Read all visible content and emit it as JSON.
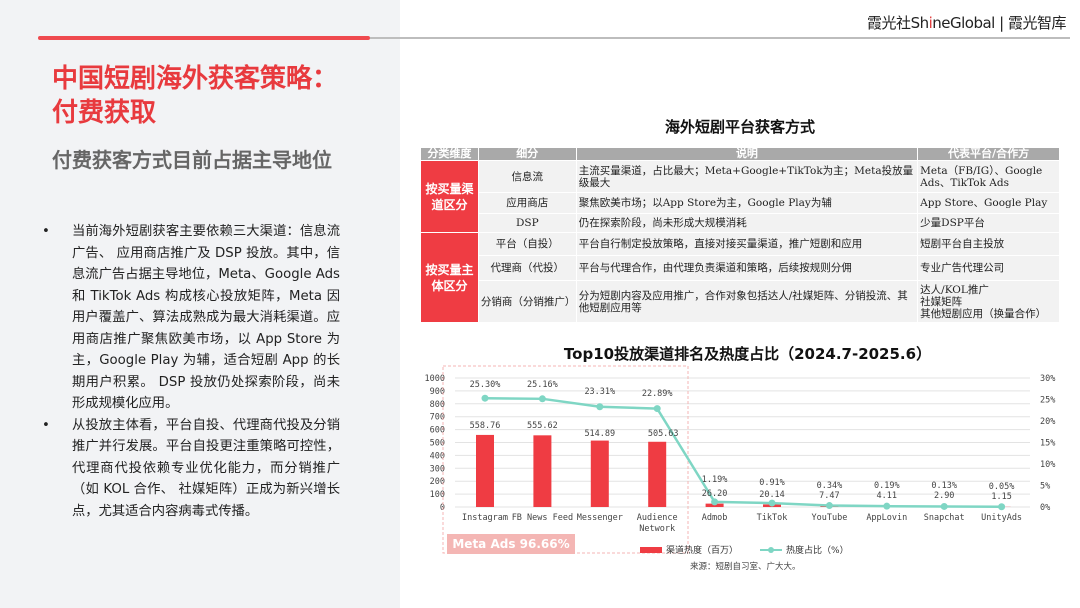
{
  "header": {
    "brand_cn": "霞光社",
    "brand_en_a": "Sh",
    "brand_en_i": "i",
    "brand_en_b": "neGlobal",
    "separator": "|",
    "brand_2": "霞光智库"
  },
  "title_line1": "中国短剧海外获客策略：",
  "title_line2": "付费获取",
  "subtitle": "付费获客方式目前占据主导地位",
  "bullets": [
    "当前海外短剧获客主要依赖三大渠道：信息流广告、 应用商店推广及 DSP 投放。其中，信息流广告占据主导地位，Meta、Google Ads 和 TikTok Ads 构成核心投放矩阵，Meta 因用户覆盖广、算法成熟成为最大消耗渠道。应用商店推广聚焦欧美市场，以 App Store 为主，Google Play 为辅，适合短剧 App 的长期用户积累。 DSP 投放仍处探索阶段，尚未形成规模化应用。",
    "从投放主体看，平台自投、代理商代投及分销推广并行发展。平台自投更注重策略可控性，代理商代投依赖专业优化能力，而分销推广（如 KOL 合作、 社媒矩阵）正成为新兴增长点，尤其适合内容病毒式传播。"
  ],
  "table": {
    "title": "海外短剧平台获客方式",
    "headers": [
      "分类维度",
      "细分",
      "说明",
      "代表平台/合作方"
    ],
    "groups": [
      "按买量渠道区分",
      "按买量主体区分"
    ],
    "rows": [
      {
        "sub": "信息流",
        "desc": "主流买量渠道，占比最大；Meta+Google+TikTok为主；Meta投放量级最大",
        "rep": "Meta（FB/IG）、Google Ads、TikTok Ads"
      },
      {
        "sub": "应用商店",
        "desc": "聚焦欧美市场；以App Store为主，Google Play为辅",
        "rep": "App Store、Google Play"
      },
      {
        "sub": "DSP",
        "desc": "仍在探索阶段，尚未形成大规模消耗",
        "rep": "少量DSP平台"
      },
      {
        "sub": "平台（自投）",
        "desc": "平台自行制定投放策略，直接对接买量渠道，推广短剧和应用",
        "rep": "短剧平台自主投放"
      },
      {
        "sub": "代理商（代投）",
        "desc": "平台与代理合作，由代理负责渠道和策略，后续按规则分佣",
        "rep": "专业广告代理公司"
      },
      {
        "sub": "分销商（分销推广）",
        "desc": "分为短剧内容及应用推广，合作对象包括达人/社媒矩阵、分销投流、其他短剧应用等",
        "rep_lines": [
          "达人/KOL推广",
          "社媒矩阵",
          "其他短剧应用（换量合作）"
        ]
      }
    ]
  },
  "chart_data": {
    "type": "bar+line",
    "title": "Top10投放渠道排名及热度占比（2024.7-2025.6）",
    "categories": [
      "Instagram",
      "FB News Feed",
      "Messenger",
      "Audience Network",
      "Admob",
      "TikTok",
      "YouTube",
      "AppLovin",
      "Snapchat",
      "UnityAds"
    ],
    "series": [
      {
        "name": "渠道热度（百万）",
        "type": "bar",
        "axis": "left",
        "values": [
          558.76,
          555.62,
          514.89,
          505.63,
          26.2,
          20.14,
          7.47,
          4.11,
          2.9,
          1.15
        ],
        "labels": [
          "558.76",
          "555.62",
          "514.89",
          "505.63",
          "26.20",
          "20.14",
          "7.47",
          "4.11",
          "2.90",
          "1.15"
        ],
        "color": "#ef3c43"
      },
      {
        "name": "热度占比（%）",
        "type": "line",
        "axis": "right",
        "values": [
          25.3,
          25.16,
          23.31,
          22.89,
          1.19,
          0.91,
          0.34,
          0.19,
          0.13,
          0.05
        ],
        "labels": [
          "25.30%",
          "25.16%",
          "23.31%",
          "22.89%",
          "1.19%",
          "0.91%",
          "0.34%",
          "0.19%",
          "0.13%",
          "0.05%"
        ],
        "color": "#7fd6c4"
      }
    ],
    "ylim_left": [
      0,
      1000
    ],
    "yticks_left": [
      "0",
      "100",
      "200",
      "300",
      "400",
      "500",
      "600",
      "700",
      "800",
      "900",
      "1000"
    ],
    "ylim_right": [
      0,
      30
    ],
    "yticks_right": [
      "0%",
      "5%",
      "10%",
      "15%",
      "20%",
      "25%",
      "30%"
    ],
    "grid": true,
    "legend": "bottom",
    "annotation": "Meta Ads 96.66%",
    "source": "来源：短剧自习室、广大大。"
  }
}
